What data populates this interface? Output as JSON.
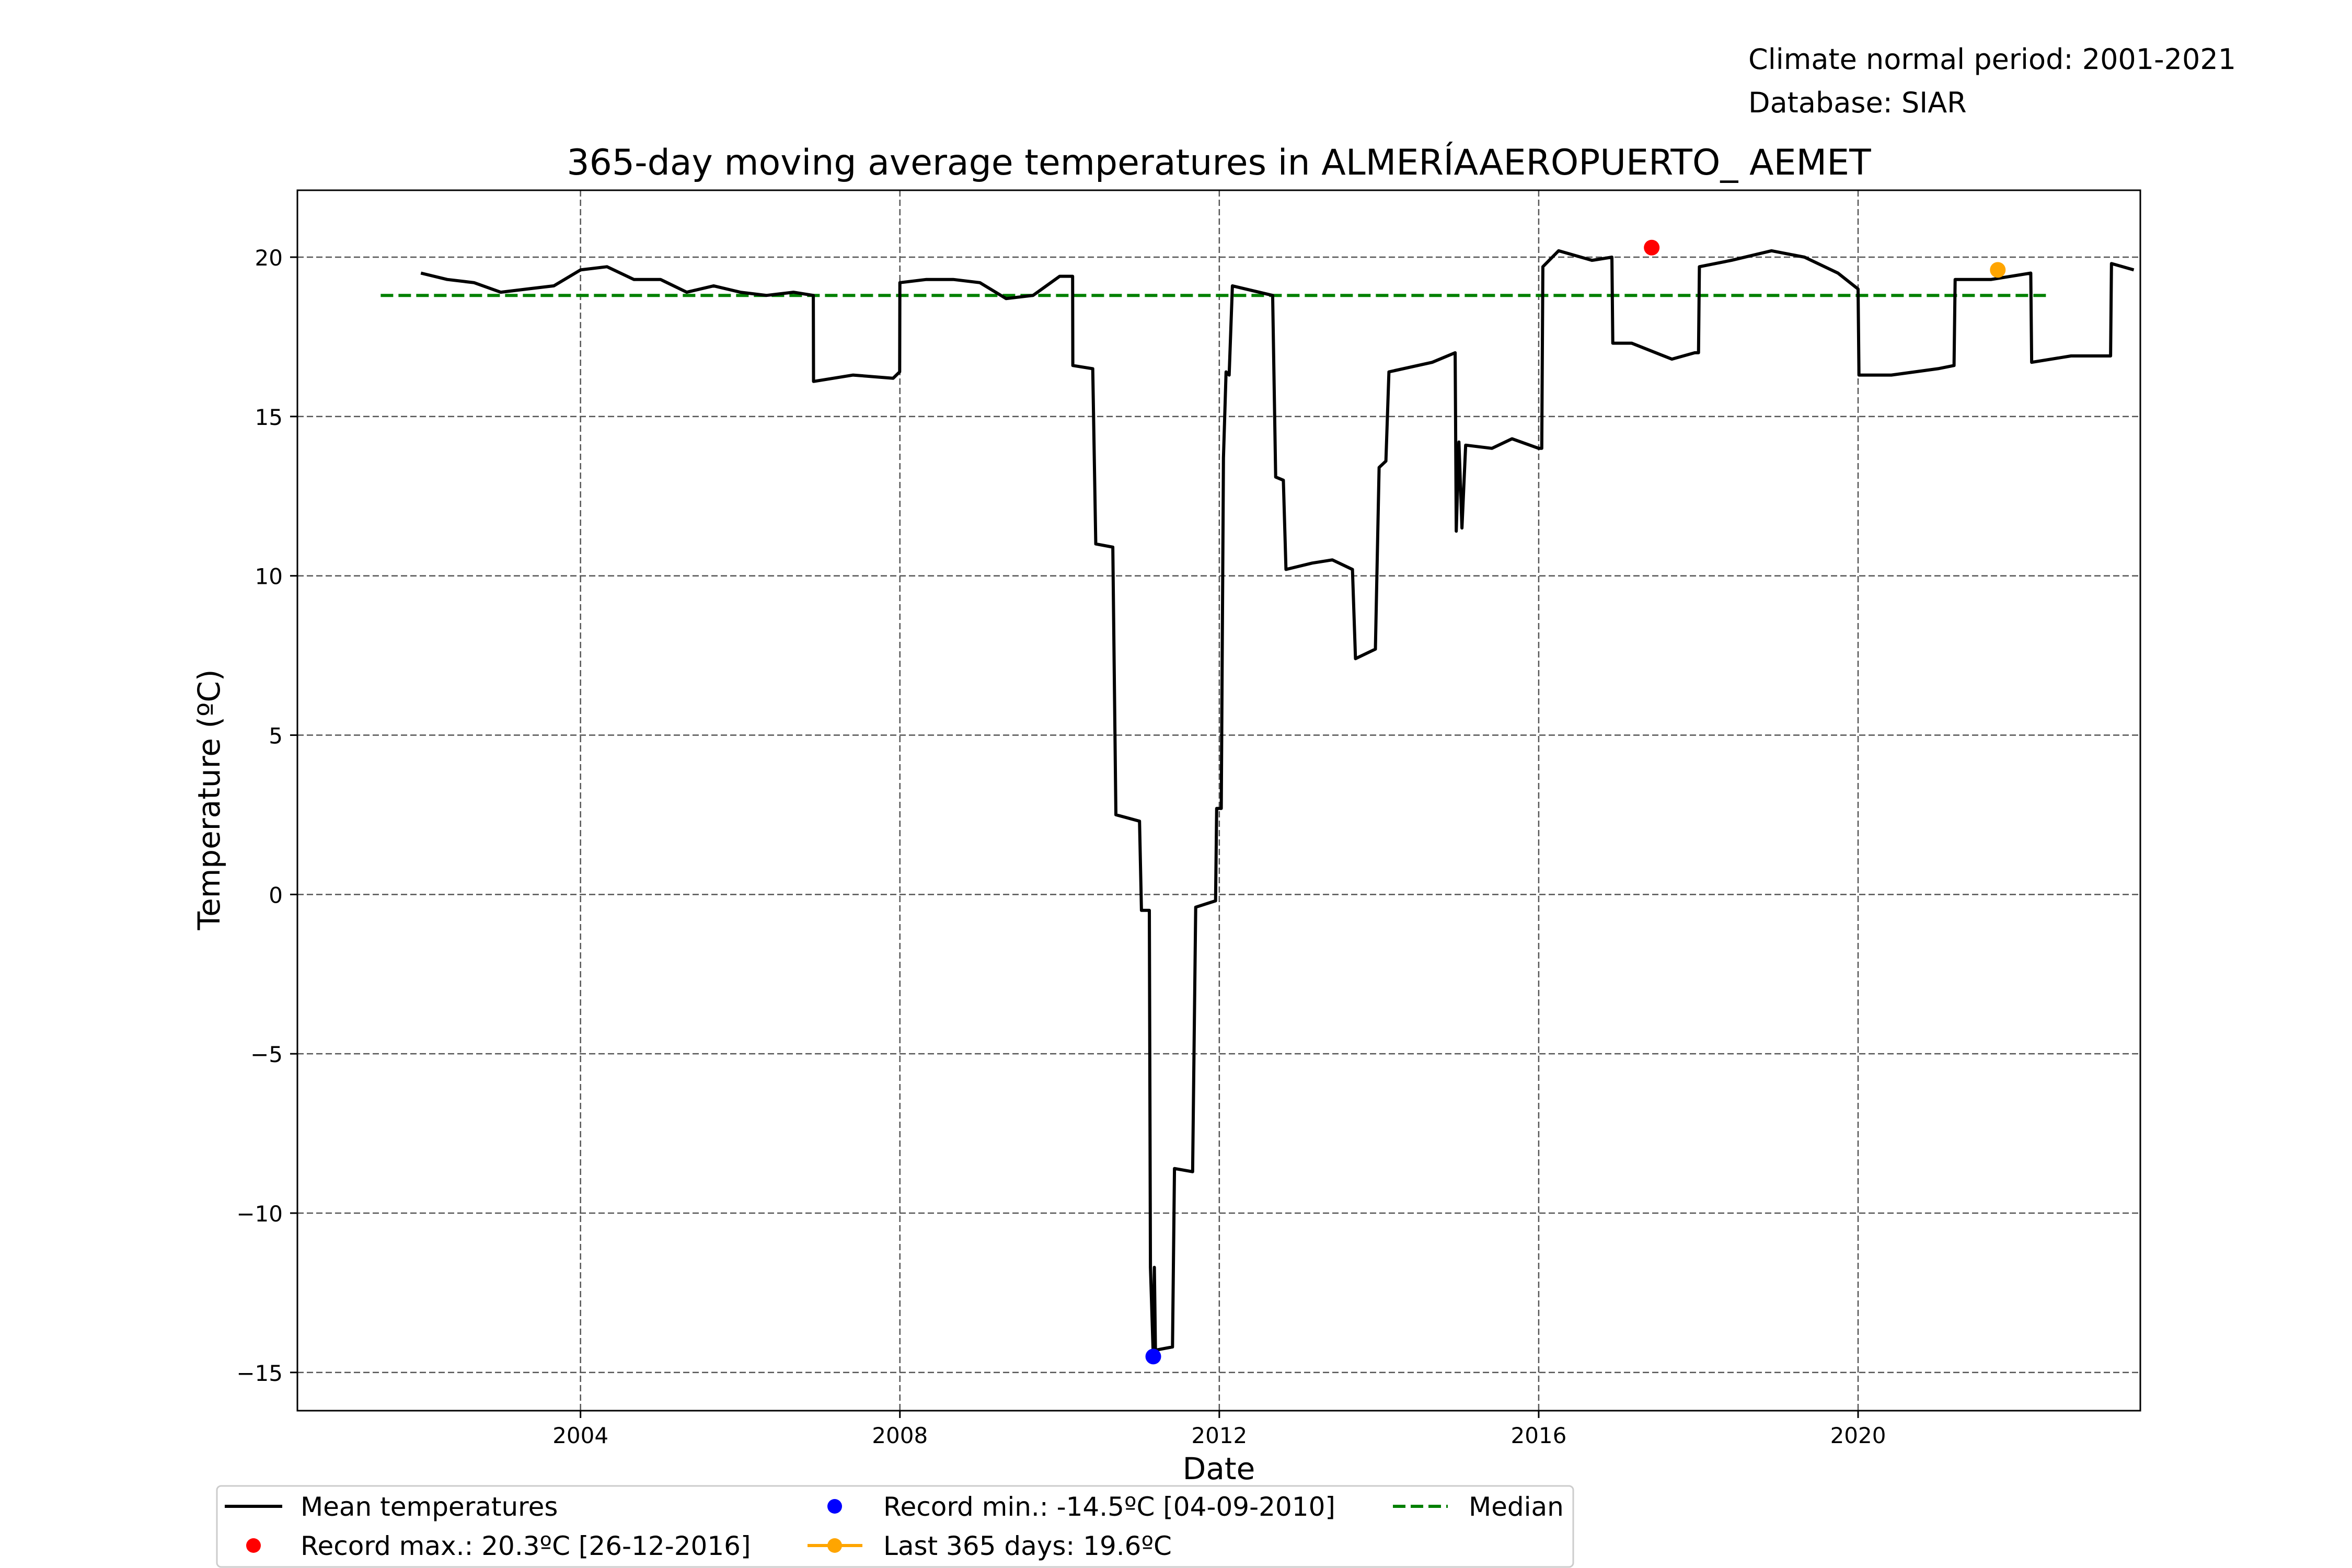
{
  "header": {
    "climate_period": "Climate normal period: 2001-2021",
    "database": "Database: SIAR"
  },
  "chart_data": {
    "type": "line",
    "title": "365-day moving average temperatures in ALMERÍAAEROPUERTO_ AEMET",
    "xlabel": "Date",
    "ylabel": "Temperature (ºC)",
    "xlim": [
      "2000-06-15",
      "2023-07-15"
    ],
    "ylim": [
      -16.2,
      22.1
    ],
    "x_ticks": [
      "2004",
      "2008",
      "2012",
      "2016",
      "2020"
    ],
    "y_ticks": [
      -15,
      -10,
      -5,
      0,
      5,
      10,
      15,
      20
    ],
    "y_tick_labels": [
      "−15",
      "−10",
      "−5",
      "0",
      "5",
      "10",
      "15",
      "20"
    ],
    "grid": true,
    "legend_position": "bottom",
    "colors": {
      "mean": "#000000",
      "max": "#ff0000",
      "min": "#0000ff",
      "last": "#ffa500",
      "median": "#008000"
    },
    "series": [
      {
        "name": "Mean temperatures",
        "points": [
          [
            "2002-01-01",
            19.5
          ],
          [
            "2002-05-01",
            19.3
          ],
          [
            "2002-09-01",
            19.2
          ],
          [
            "2003-01-01",
            18.9
          ],
          [
            "2003-05-01",
            19.0
          ],
          [
            "2003-09-01",
            19.1
          ],
          [
            "2004-01-01",
            19.6
          ],
          [
            "2004-05-01",
            19.7
          ],
          [
            "2004-09-01",
            19.3
          ],
          [
            "2005-01-01",
            19.3
          ],
          [
            "2005-05-01",
            18.9
          ],
          [
            "2005-09-01",
            19.1
          ],
          [
            "2006-01-01",
            18.9
          ],
          [
            "2006-05-01",
            18.8
          ],
          [
            "2006-09-01",
            18.9
          ],
          [
            "2006-12-01",
            18.8
          ],
          [
            "2006-12-02",
            16.1
          ],
          [
            "2007-06-01",
            16.3
          ],
          [
            "2007-12-01",
            16.2
          ],
          [
            "2007-12-31",
            16.4
          ],
          [
            "2008-01-01",
            19.2
          ],
          [
            "2008-05-01",
            19.3
          ],
          [
            "2008-09-01",
            19.3
          ],
          [
            "2009-01-01",
            19.2
          ],
          [
            "2009-05-01",
            18.7
          ],
          [
            "2009-09-01",
            18.8
          ],
          [
            "2010-01-01",
            19.4
          ],
          [
            "2010-03-01",
            19.4
          ],
          [
            "2010-03-02",
            16.6
          ],
          [
            "2010-06-01",
            16.5
          ],
          [
            "2010-06-15",
            11.0
          ],
          [
            "2010-09-01",
            10.9
          ],
          [
            "2010-09-15",
            2.5
          ],
          [
            "2011-01-01",
            2.3
          ],
          [
            "2011-01-10",
            -0.5
          ],
          [
            "2011-02-15",
            -0.5
          ],
          [
            "2011-02-20",
            -11.7
          ],
          [
            "2011-03-05",
            -14.5
          ],
          [
            "2011-03-10",
            -11.7
          ],
          [
            "2011-03-15",
            -14.3
          ],
          [
            "2011-06-01",
            -14.2
          ],
          [
            "2011-06-10",
            -8.6
          ],
          [
            "2011-09-01",
            -8.7
          ],
          [
            "2011-09-15",
            -0.4
          ],
          [
            "2011-12-15",
            -0.2
          ],
          [
            "2011-12-20",
            2.7
          ],
          [
            "2012-01-10",
            2.7
          ],
          [
            "2012-01-20",
            13.7
          ],
          [
            "2012-02-01",
            16.4
          ],
          [
            "2012-02-15",
            16.3
          ],
          [
            "2012-03-01",
            19.1
          ],
          [
            "2012-09-01",
            18.8
          ],
          [
            "2012-09-15",
            13.1
          ],
          [
            "2012-10-20",
            13.0
          ],
          [
            "2012-11-01",
            10.2
          ],
          [
            "2013-03-01",
            10.4
          ],
          [
            "2013-06-01",
            10.5
          ],
          [
            "2013-09-01",
            10.2
          ],
          [
            "2013-09-15",
            7.4
          ],
          [
            "2013-12-15",
            7.7
          ],
          [
            "2014-01-01",
            13.4
          ],
          [
            "2014-02-01",
            13.6
          ],
          [
            "2014-02-15",
            16.4
          ],
          [
            "2014-09-01",
            16.7
          ],
          [
            "2014-12-15",
            17.0
          ],
          [
            "2014-12-20",
            11.4
          ],
          [
            "2015-01-01",
            14.2
          ],
          [
            "2015-01-15",
            11.5
          ],
          [
            "2015-02-01",
            14.1
          ],
          [
            "2015-06-01",
            14.0
          ],
          [
            "2015-09-01",
            14.3
          ],
          [
            "2016-01-01",
            14.0
          ],
          [
            "2016-01-15",
            14.0
          ],
          [
            "2016-01-20",
            19.7
          ],
          [
            "2016-04-01",
            20.2
          ],
          [
            "2016-09-01",
            19.9
          ],
          [
            "2016-12-01",
            20.0
          ],
          [
            "2016-12-05",
            17.3
          ],
          [
            "2017-03-01",
            17.3
          ],
          [
            "2017-09-01",
            16.8
          ],
          [
            "2017-12-15",
            17.0
          ],
          [
            "2018-01-01",
            17.0
          ],
          [
            "2018-01-05",
            19.7
          ],
          [
            "2018-06-01",
            19.9
          ],
          [
            "2018-12-01",
            20.2
          ],
          [
            "2019-05-01",
            20.0
          ],
          [
            "2019-10-01",
            19.5
          ],
          [
            "2020-01-01",
            19.0
          ],
          [
            "2020-01-05",
            16.3
          ],
          [
            "2020-06-01",
            16.3
          ],
          [
            "2021-01-01",
            16.5
          ],
          [
            "2021-03-15",
            16.6
          ],
          [
            "2021-03-20",
            19.3
          ],
          [
            "2021-09-01",
            19.3
          ],
          [
            "2022-03-01",
            19.5
          ],
          [
            "2022-03-05",
            16.7
          ],
          [
            "2022-09-01",
            16.9
          ],
          [
            "2023-03-01",
            16.9
          ],
          [
            "2023-03-05",
            19.8
          ],
          [
            "2023-06-15",
            19.6
          ]
        ]
      }
    ],
    "median": {
      "value": 18.8,
      "x_start": "2001-07-01",
      "x_end": "2022-06-01"
    },
    "markers": {
      "max": {
        "x": "2017-06-01",
        "y": 20.3
      },
      "min": {
        "x": "2011-03-05",
        "y": -14.5
      },
      "last": {
        "x": "2021-10-01",
        "y": 19.6
      }
    },
    "legend": {
      "mean": "Mean temperatures",
      "max": "Record max.: 20.3ºC [26-12-2016]",
      "min": "Record min.: -14.5ºC [04-09-2010]",
      "last": "Last 365 days: 19.6ºC",
      "median": "Median"
    }
  }
}
